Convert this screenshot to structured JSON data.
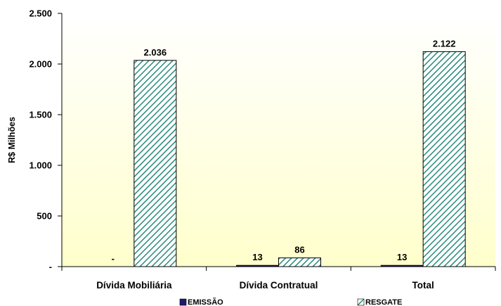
{
  "chart_data": {
    "type": "bar",
    "categories": [
      "Dívida Mobiliária",
      "Dívida Contratual",
      "Total"
    ],
    "series": [
      {
        "name": "EMISSÃO",
        "values": [
          0,
          13,
          13
        ],
        "labels": [
          "-",
          "13",
          "13"
        ],
        "color": "#1f1a6e"
      },
      {
        "name": "RESGATE",
        "values": [
          2036,
          86,
          2122
        ],
        "labels": [
          "2.036",
          "86",
          "2.122"
        ],
        "color": "#2a8a7a",
        "pattern": "diagonal-hatch"
      }
    ],
    "ylabel": "R$ Milhões",
    "ylim": [
      0,
      2500
    ],
    "yticks": [
      0,
      500,
      1000,
      1500,
      2000,
      2500
    ],
    "ytick_labels": [
      "-",
      "500",
      "1.000",
      "1.500",
      "2.000",
      "2.500"
    ],
    "plot_background": "#ffffcc",
    "legend_position": "bottom",
    "grid": false
  }
}
